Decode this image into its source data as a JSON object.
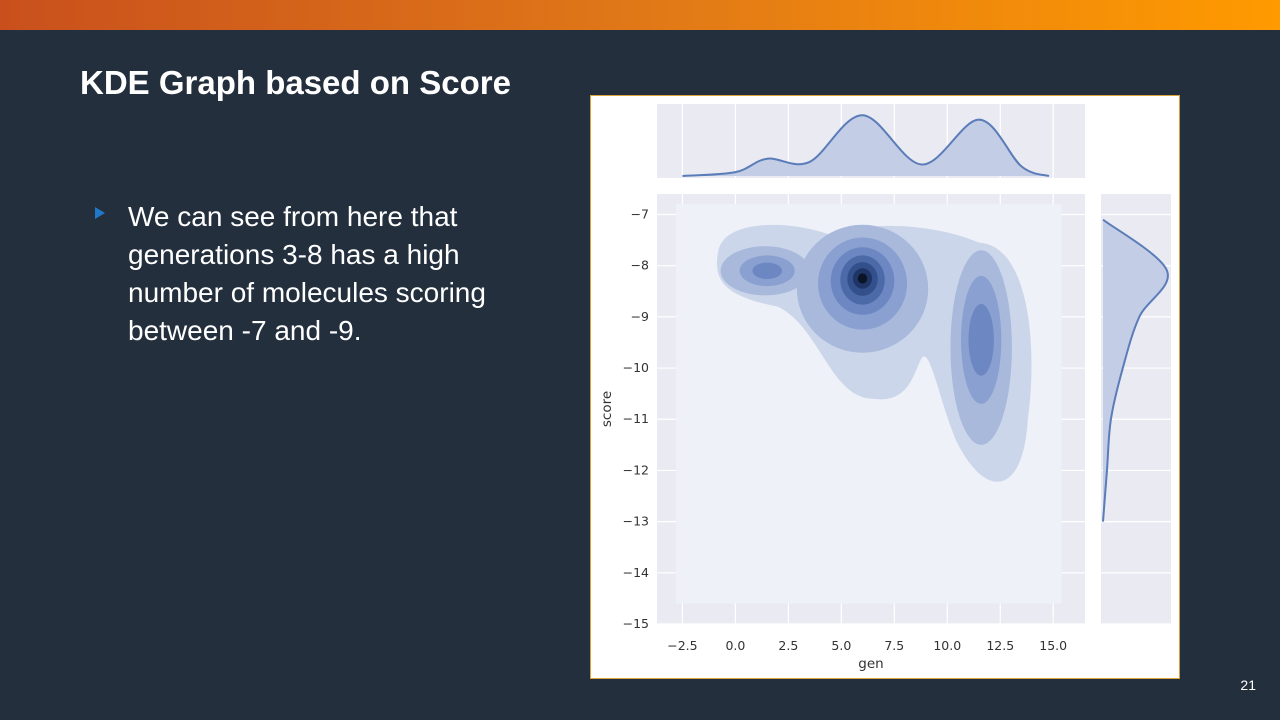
{
  "slide": {
    "title": "KDE Graph based on Score",
    "bullet": "We can see from here that generations 3-8 has a high number of molecules scoring between -7 and -9.",
    "page_number": "21"
  },
  "colors": {
    "background": "#232f3d",
    "accent_start": "#c9501c",
    "accent_end": "#ff9a00",
    "bullet_marker": "#1f78c8",
    "kde_line": "#5a7cb8",
    "axes_face": "#eaeaf2"
  },
  "chart_data": {
    "type": "kde-jointplot",
    "xlabel": "gen",
    "ylabel": "score",
    "x_ticks": [
      "−2.5",
      "0.0",
      "2.5",
      "5.0",
      "7.5",
      "10.0",
      "12.5",
      "15.0"
    ],
    "y_ticks": [
      "−7",
      "−8",
      "−9",
      "−10",
      "−11",
      "−12",
      "−13",
      "−14",
      "−15"
    ],
    "xlim": [
      -3.7,
      16.5
    ],
    "ylim": [
      -15.0,
      -6.6
    ],
    "grid": true,
    "joint_density_peaks": [
      {
        "x": 6.0,
        "y": -8.25,
        "weight": 1.0
      },
      {
        "x": 11.6,
        "y": -9.5,
        "weight": 0.55
      },
      {
        "x": 1.5,
        "y": -8.1,
        "weight": 0.4
      }
    ],
    "marginal_x": [
      {
        "x": -2.5,
        "density": 0.0
      },
      {
        "x": 0.0,
        "density": 0.06
      },
      {
        "x": 1.5,
        "density": 0.27
      },
      {
        "x": 3.5,
        "density": 0.22
      },
      {
        "x": 6.0,
        "density": 0.95
      },
      {
        "x": 8.8,
        "density": 0.18
      },
      {
        "x": 11.5,
        "density": 0.88
      },
      {
        "x": 13.5,
        "density": 0.15
      },
      {
        "x": 14.8,
        "density": 0.0
      }
    ],
    "marginal_y": [
      {
        "y": -7.1,
        "density": 0.0
      },
      {
        "y": -8.1,
        "density": 0.97
      },
      {
        "y": -9.0,
        "density": 0.55
      },
      {
        "y": -10.0,
        "density": 0.3
      },
      {
        "y": -11.0,
        "density": 0.12
      },
      {
        "y": -12.0,
        "density": 0.06
      },
      {
        "y": -13.0,
        "density": 0.0
      }
    ]
  }
}
